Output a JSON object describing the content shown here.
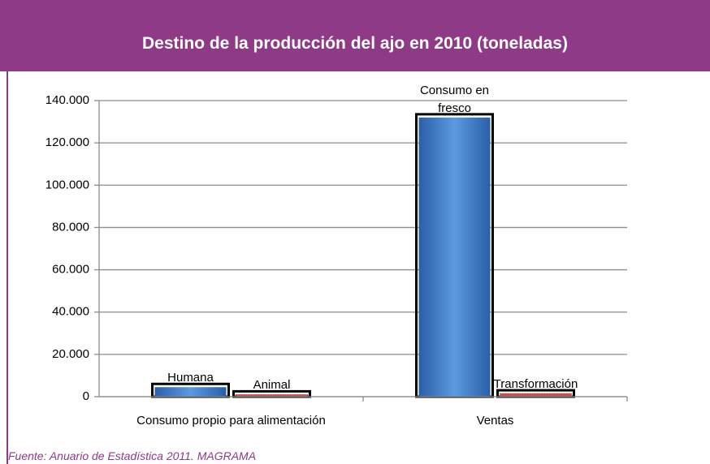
{
  "chart_data": {
    "type": "bar",
    "title": "Destino de la producción del ajo en 2010 (toneladas)",
    "categories": [
      "Consumo propio para alimentación",
      "Ventas"
    ],
    "series": [
      {
        "color": "#3a78c8",
        "values": [
          4500,
          132000
        ],
        "labels": [
          "Humana",
          "Consumo en fresco"
        ]
      },
      {
        "color": "#c0504d",
        "values": [
          1000,
          1500
        ],
        "labels": [
          "Animal",
          "Transformación"
        ]
      }
    ],
    "ylim": [
      0,
      140000
    ],
    "yticks": [
      0,
      {
        "value": 20000,
        "label": "20.000"
      },
      {
        "value": 40000,
        "label": "40.000"
      },
      {
        "value": 60000,
        "label": "60.000"
      },
      {
        "value": 80000,
        "label": "80.000"
      },
      {
        "value": 100000,
        "label": "100.000"
      },
      {
        "value": 120000,
        "label": "120.000"
      },
      {
        "value": 140000,
        "label": "140.000"
      }
    ],
    "grid": true,
    "source": "Fuente: Anuario de Estadística 2011. MAGRAMA"
  }
}
